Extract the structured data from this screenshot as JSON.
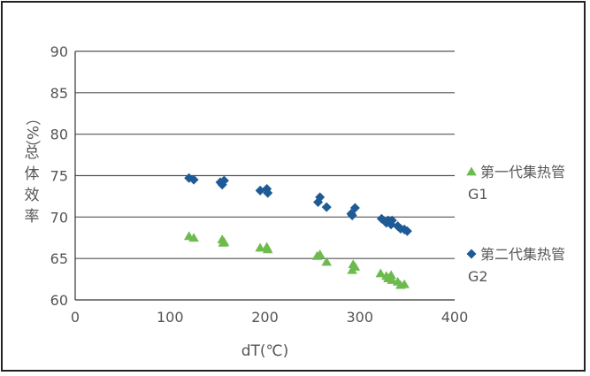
{
  "chart_data": {
    "type": "scatter",
    "title": "",
    "xlabel": "dT(℃)",
    "ylabel": "总体效率（%）",
    "ylabel_parts": [
      "（%）",
      "总",
      "体",
      "效",
      "率"
    ],
    "xlim": [
      0,
      400
    ],
    "ylim": [
      60,
      90
    ],
    "x_ticks": [
      0,
      100,
      200,
      300,
      400
    ],
    "y_ticks": [
      60,
      65,
      70,
      75,
      80,
      85,
      90
    ],
    "grid": "horizontal",
    "legend_position": "right",
    "series": [
      {
        "name": "第一代集热管G1",
        "legend_lines": [
          "第一代集热管",
          "G1"
        ],
        "marker": "triangle",
        "color": "#6dbb4f",
        "points": [
          [
            120,
            67.7
          ],
          [
            125,
            67.5
          ],
          [
            155,
            67.3
          ],
          [
            156,
            66.9
          ],
          [
            157,
            67.0
          ],
          [
            195,
            66.3
          ],
          [
            202,
            66.4
          ],
          [
            203,
            66.1
          ],
          [
            255,
            65.3
          ],
          [
            258,
            65.5
          ],
          [
            265,
            64.6
          ],
          [
            292,
            63.6
          ],
          [
            293,
            64.3
          ],
          [
            295,
            64.0
          ],
          [
            322,
            63.2
          ],
          [
            328,
            62.9
          ],
          [
            330,
            62.6
          ],
          [
            333,
            63.0
          ],
          [
            334,
            62.4
          ],
          [
            340,
            62.2
          ],
          [
            343,
            61.8
          ],
          [
            347,
            61.9
          ]
        ]
      },
      {
        "name": "第二代集热管G2",
        "legend_lines": [
          "第二代集热管",
          "G2"
        ],
        "marker": "diamond",
        "color": "#1e5a96",
        "points": [
          [
            120,
            74.7
          ],
          [
            125,
            74.5
          ],
          [
            153,
            74.2
          ],
          [
            155,
            73.9
          ],
          [
            157,
            74.4
          ],
          [
            195,
            73.2
          ],
          [
            202,
            73.4
          ],
          [
            203,
            72.9
          ],
          [
            256,
            71.8
          ],
          [
            258,
            72.4
          ],
          [
            265,
            71.2
          ],
          [
            291,
            70.4
          ],
          [
            292,
            70.2
          ],
          [
            295,
            71.1
          ],
          [
            323,
            69.8
          ],
          [
            328,
            69.3
          ],
          [
            330,
            69.6
          ],
          [
            333,
            69.1
          ],
          [
            334,
            69.6
          ],
          [
            340,
            68.9
          ],
          [
            343,
            68.6
          ],
          [
            347,
            68.5
          ],
          [
            350,
            68.3
          ]
        ]
      }
    ]
  }
}
